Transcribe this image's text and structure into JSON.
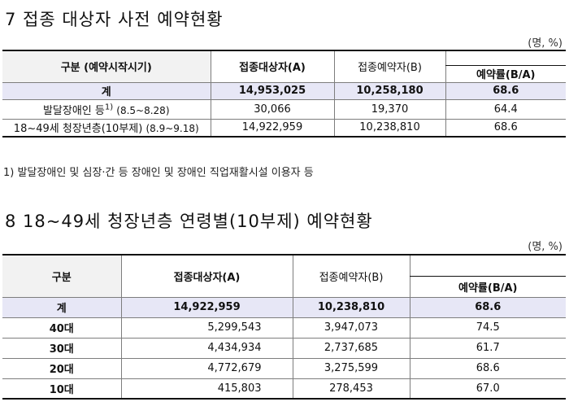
{
  "section7": {
    "title": "7 접종 대상자 사전 예약현황",
    "unit": "(명, %)",
    "headers": {
      "category": "구분 (예약시작시기)",
      "targets": "접종대상자(A)",
      "reserved": "접종예약자(B)",
      "rate": "예약률(B/A)"
    },
    "total": {
      "label": "계",
      "targets": "14,953,025",
      "reserved": "10,258,180",
      "rate": "68.6"
    },
    "rows": [
      {
        "label": "발달장애인 등",
        "sup": "1)",
        "period": "(8.5~8.28)",
        "targets": "30,066",
        "reserved": "19,370",
        "rate": "64.4"
      },
      {
        "label": "18~49세 청장년층(10부제)",
        "sup": "",
        "period": "(8.9~9.18)",
        "targets": "14,922,959",
        "reserved": "10,238,810",
        "rate": "68.6"
      }
    ],
    "footnote": "1) 발달장애인 및 심장·간 등 장애인 및 장애인 직업재활시설 이용자 등"
  },
  "section8": {
    "title": "8 18~49세 청장년층 연령별(10부제) 예약현황",
    "unit": "(명, %)",
    "headers": {
      "category": "구분",
      "targets": "접종대상자(A)",
      "reserved": "접종예약자(B)",
      "rate": "예약률(B/A)"
    },
    "total": {
      "label": "계",
      "targets": "14,922,959",
      "reserved": "10,238,810",
      "rate": "68.6"
    },
    "rows": [
      {
        "label": "40대",
        "targets": "5,299,543",
        "reserved": "3,947,073",
        "rate": "74.5"
      },
      {
        "label": "30대",
        "targets": "4,434,934",
        "reserved": "2,737,685",
        "rate": "61.7"
      },
      {
        "label": "20대",
        "targets": "4,772,679",
        "reserved": "3,275,599",
        "rate": "68.6"
      },
      {
        "label": "10대",
        "targets": "415,803",
        "reserved": "278,453",
        "rate": "67.0"
      }
    ]
  }
}
